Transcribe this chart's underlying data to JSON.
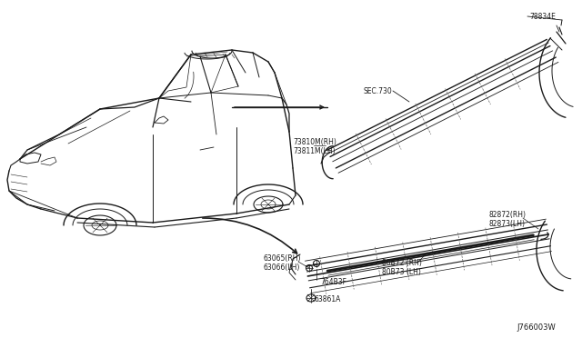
{
  "bg_color": "#ffffff",
  "line_color": "#1a1a1a",
  "gray_color": "#666666",
  "diagram_id": "J766003W",
  "labels": {
    "sec730": "SEC.730",
    "78834E": "78834E",
    "73810M_RH": "73810M(RH)",
    "73810M_LH": "73811M(LH)",
    "82872_RH": "82872(RH)",
    "82873_LH": "82873(LH)",
    "80B72_RH": "80B72 (RH)",
    "80B73_LH": "80B73 (LH)",
    "63065_RH": "63065(RH)",
    "63066_LH": "63066(LH)",
    "764B3F": "764B3F",
    "63861A": "63861A"
  }
}
